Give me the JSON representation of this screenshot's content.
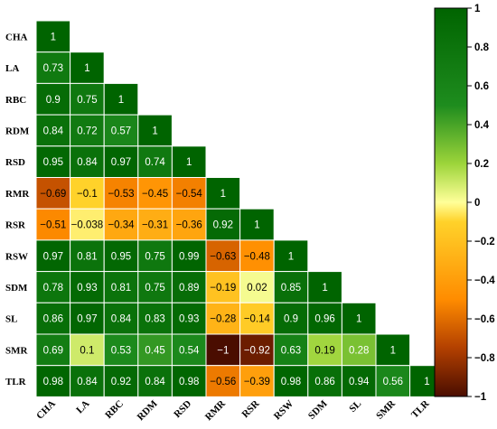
{
  "chart_data": {
    "type": "heatmap",
    "variables": [
      "CHA",
      "LA",
      "RBC",
      "RDM",
      "RSD",
      "RMR",
      "RSR",
      "RSW",
      "SDM",
      "SL",
      "SMR",
      "TLR"
    ],
    "lower_triangle": [
      [
        1
      ],
      [
        0.73,
        1
      ],
      [
        0.9,
        0.75,
        1
      ],
      [
        0.84,
        0.72,
        0.57,
        1
      ],
      [
        0.95,
        0.84,
        0.97,
        0.74,
        1
      ],
      [
        -0.69,
        -0.1,
        -0.53,
        -0.45,
        -0.54,
        1
      ],
      [
        -0.51,
        -0.038,
        -0.34,
        -0.31,
        -0.36,
        0.92,
        1
      ],
      [
        0.97,
        0.81,
        0.95,
        0.75,
        0.99,
        -0.63,
        -0.48,
        1
      ],
      [
        0.78,
        0.93,
        0.81,
        0.75,
        0.89,
        -0.19,
        0.02,
        0.85,
        1
      ],
      [
        0.86,
        0.97,
        0.84,
        0.83,
        0.93,
        -0.28,
        -0.14,
        0.9,
        0.96,
        1
      ],
      [
        0.69,
        0.1,
        0.53,
        0.45,
        0.54,
        -1,
        -0.92,
        0.63,
        0.19,
        0.28,
        1
      ],
      [
        0.98,
        0.84,
        0.92,
        0.84,
        0.98,
        -0.56,
        -0.39,
        0.98,
        0.86,
        0.94,
        0.56,
        1
      ]
    ],
    "colorbar": {
      "range": [
        -1,
        1
      ],
      "ticks": [
        "1",
        "0.8",
        "0.6",
        "0.4",
        "0.2",
        "0",
        "−0.2",
        "−0.4",
        "−0.6",
        "−0.8",
        "−1"
      ]
    },
    "colors": {
      "low": "#4a0d00",
      "mid_low": "#ff8c00",
      "mid": "#ffff99",
      "mid_high": "#1e8c1e",
      "high": "#006400"
    }
  }
}
